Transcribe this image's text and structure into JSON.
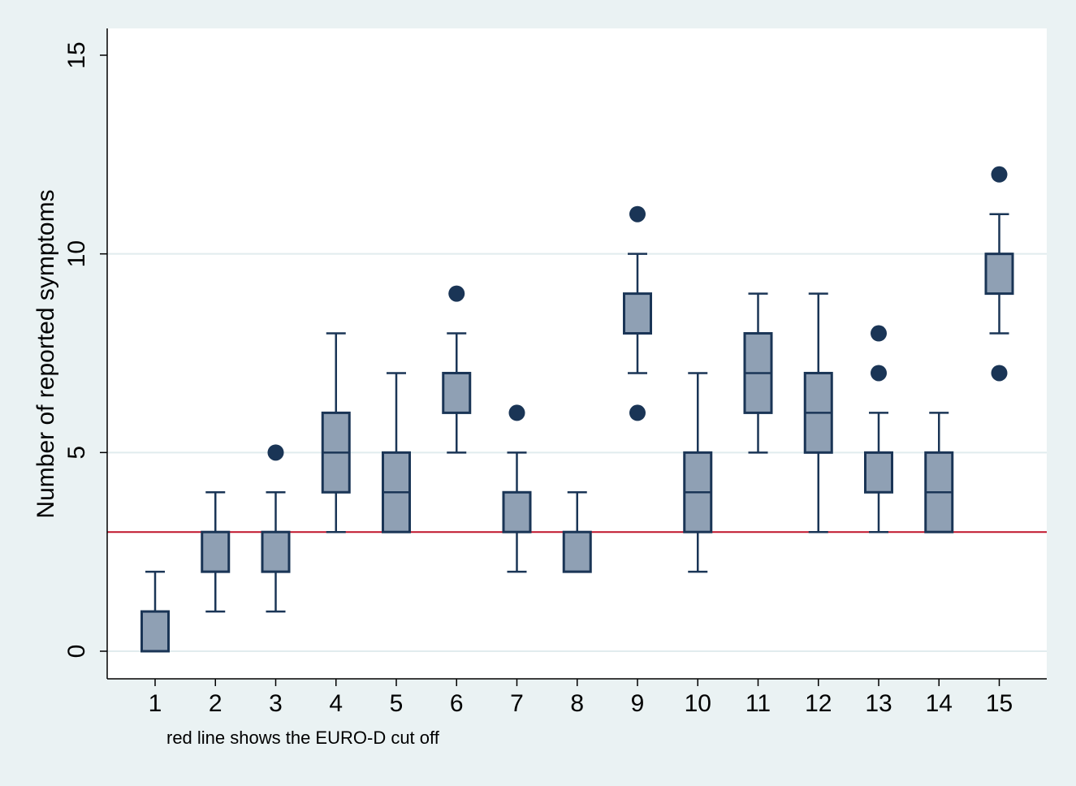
{
  "chart_data": {
    "type": "box",
    "ylabel": "Number of reported symptoms",
    "note": "red line shows the EURO-D cut off",
    "ylim": [
      0,
      15
    ],
    "yticks": [
      0,
      5,
      10,
      15
    ],
    "grid": true,
    "cutoff": 3,
    "categories": [
      "1",
      "2",
      "3",
      "4",
      "5",
      "6",
      "7",
      "8",
      "9",
      "10",
      "11",
      "12",
      "13",
      "14",
      "15"
    ],
    "boxes": [
      {
        "category": "1",
        "whisker_low": 0,
        "q1": 0,
        "median": 0,
        "q3": 1,
        "whisker_high": 2,
        "outliers": []
      },
      {
        "category": "2",
        "whisker_low": 1,
        "q1": 2,
        "median": 2,
        "q3": 3,
        "whisker_high": 4,
        "outliers": []
      },
      {
        "category": "3",
        "whisker_low": 1,
        "q1": 2,
        "median": 2,
        "q3": 3,
        "whisker_high": 4,
        "outliers": [
          5
        ]
      },
      {
        "category": "4",
        "whisker_low": 3,
        "q1": 4,
        "median": 5,
        "q3": 6,
        "whisker_high": 8,
        "outliers": []
      },
      {
        "category": "5",
        "whisker_low": 3,
        "q1": 3,
        "median": 4,
        "q3": 5,
        "whisker_high": 7,
        "outliers": []
      },
      {
        "category": "6",
        "whisker_low": 5,
        "q1": 6,
        "median": 7,
        "q3": 7,
        "whisker_high": 8,
        "outliers": [
          9
        ]
      },
      {
        "category": "7",
        "whisker_low": 2,
        "q1": 3,
        "median": 4,
        "q3": 4,
        "whisker_high": 5,
        "outliers": [
          6
        ]
      },
      {
        "category": "8",
        "whisker_low": 2,
        "q1": 2,
        "median": 2,
        "q3": 3,
        "whisker_high": 4,
        "outliers": []
      },
      {
        "category": "9",
        "whisker_low": 7,
        "q1": 8,
        "median": 8,
        "q3": 9,
        "whisker_high": 10,
        "outliers": [
          6,
          11
        ]
      },
      {
        "category": "10",
        "whisker_low": 2,
        "q1": 3,
        "median": 4,
        "q3": 5,
        "whisker_high": 7,
        "outliers": []
      },
      {
        "category": "11",
        "whisker_low": 5,
        "q1": 6,
        "median": 7,
        "q3": 8,
        "whisker_high": 9,
        "outliers": []
      },
      {
        "category": "12",
        "whisker_low": 3,
        "q1": 5,
        "median": 6,
        "q3": 7,
        "whisker_high": 9,
        "outliers": []
      },
      {
        "category": "13",
        "whisker_low": 3,
        "q1": 4,
        "median": 5,
        "q3": 5,
        "whisker_high": 6,
        "outliers": [
          7,
          8
        ]
      },
      {
        "category": "14",
        "whisker_low": 3,
        "q1": 3,
        "median": 4,
        "q3": 5,
        "whisker_high": 6,
        "outliers": []
      },
      {
        "category": "15",
        "whisker_low": 8,
        "q1": 9,
        "median": 10,
        "q3": 10,
        "whisker_high": 11,
        "outliers": [
          7,
          12
        ]
      }
    ],
    "colors": {
      "background": "#eaf2f3",
      "plot_background": "#ffffff",
      "box_fill": "#8fa0b4",
      "box_stroke": "#1a3556",
      "outlier": "#1a3556",
      "cutoff_line": "#c0142a",
      "grid": "#e1ecee",
      "axis": "#000000"
    }
  }
}
